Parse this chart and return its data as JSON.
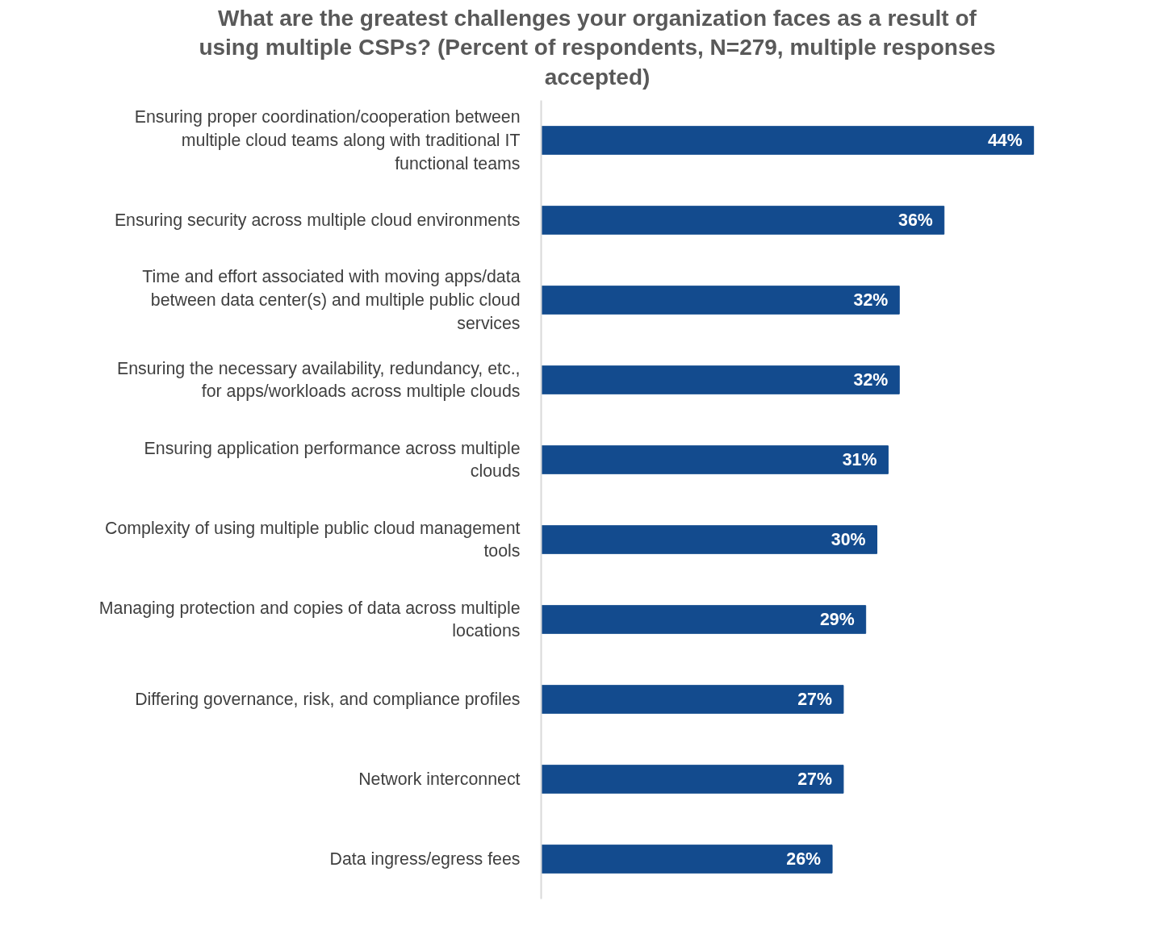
{
  "chart_data": {
    "type": "bar",
    "orientation": "horizontal",
    "title": "What are the greatest challenges your organization faces as a result of using multiple CSPs? (Percent of respondents, N=279, multiple responses accepted)",
    "categories": [
      "Ensuring proper coordination/cooperation between multiple cloud teams along with traditional IT functional teams",
      "Ensuring security across multiple cloud environments",
      "Time and effort associated with moving apps/data between data center(s) and multiple public cloud services",
      "Ensuring the necessary availability, redundancy, etc., for apps/workloads across multiple clouds",
      "Ensuring application performance across multiple clouds",
      "Complexity of using multiple public cloud management tools",
      "Managing protection and copies of data across multiple locations",
      "Differing governance, risk, and compliance profiles",
      "Network interconnect",
      "Data ingress/egress fees"
    ],
    "values": [
      44,
      36,
      32,
      32,
      31,
      30,
      29,
      27,
      27,
      26
    ],
    "value_labels": [
      "44%",
      "36%",
      "32%",
      "32%",
      "31%",
      "30%",
      "29%",
      "27%",
      "27%",
      "26%"
    ],
    "color": "#134b8e",
    "tick_labels": "y",
    "grid": false
  }
}
